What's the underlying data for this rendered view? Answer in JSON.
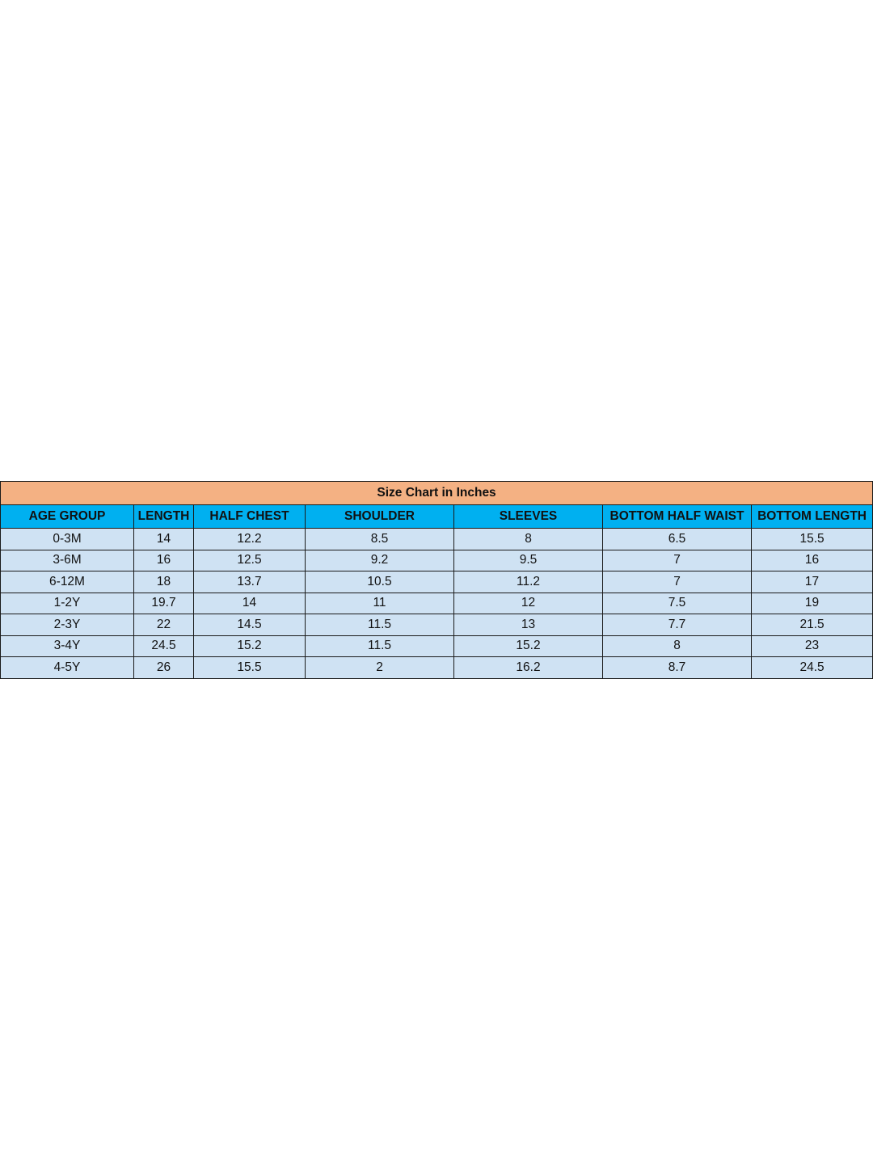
{
  "title": "Size Chart in Inches",
  "columns": [
    "AGE GROUP",
    "LENGTH",
    "HALF CHEST",
    "SHOULDER",
    "SLEEVES",
    "BOTTOM HALF WAIST",
    "BOTTOM LENGTH"
  ],
  "rows": [
    [
      "0-3M",
      "14",
      "12.2",
      "8.5",
      "8",
      "6.5",
      "15.5"
    ],
    [
      "3-6M",
      "16",
      "12.5",
      "9.2",
      "9.5",
      "7",
      "16"
    ],
    [
      "6-12M",
      "18",
      "13.7",
      "10.5",
      "11.2",
      "7",
      "17"
    ],
    [
      "1-2Y",
      "19.7",
      "14",
      "11",
      "12",
      "7.5",
      "19"
    ],
    [
      "2-3Y",
      "22",
      "14.5",
      "11.5",
      "13",
      "7.7",
      "21.5"
    ],
    [
      "3-4Y",
      "24.5",
      "15.2",
      "11.5",
      "15.2",
      "8",
      "23"
    ],
    [
      "4-5Y",
      "26",
      "15.5",
      "2",
      "16.2",
      "8.7",
      "24.5"
    ]
  ],
  "colors": {
    "title_bg": "#f4b183",
    "header_bg": "#00b0f0",
    "cell_bg": "#cfe2f3"
  }
}
